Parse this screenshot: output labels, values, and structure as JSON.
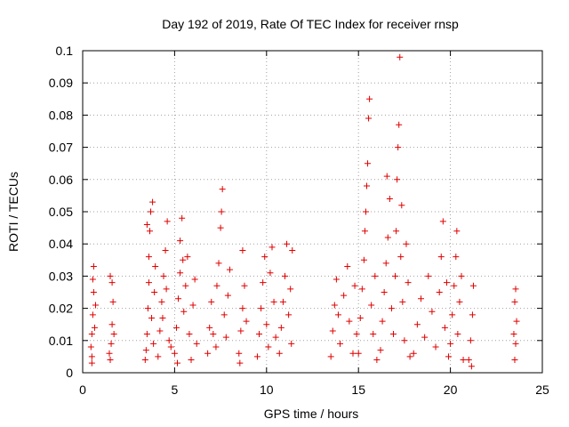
{
  "chart_data": {
    "type": "scatter",
    "title": "Day 192 of 2019, Rate Of TEC Index for receiver rnsp",
    "xlabel": "GPS time / hours",
    "ylabel": "ROTI / TECUs",
    "xlim": [
      0,
      25
    ],
    "ylim": [
      0,
      0.1
    ],
    "x_ticks": [
      0,
      5,
      10,
      15,
      20,
      25
    ],
    "x_tick_labels": [
      "0",
      "5",
      "10",
      "15",
      "20",
      "25"
    ],
    "y_ticks": [
      0,
      0.01,
      0.02,
      0.03,
      0.04,
      0.05,
      0.06,
      0.07,
      0.08,
      0.09,
      0.1
    ],
    "y_tick_labels": [
      "0",
      "0.01",
      "0.02",
      "0.03",
      "0.04",
      "0.05",
      "0.06",
      "0.07",
      "0.08",
      "0.09",
      "0.1"
    ],
    "grid": true,
    "marker": "+",
    "color": "#e00000",
    "series": [
      {
        "points": [
          [
            0.5,
            0.005
          ],
          [
            0.5,
            0.012
          ],
          [
            0.55,
            0.018
          ],
          [
            0.6,
            0.025
          ],
          [
            0.6,
            0.033
          ],
          [
            0.45,
            0.008
          ],
          [
            0.65,
            0.014
          ],
          [
            0.7,
            0.021
          ],
          [
            0.55,
            0.029
          ],
          [
            0.5,
            0.003
          ],
          [
            1.5,
            0.004
          ],
          [
            1.55,
            0.009
          ],
          [
            1.6,
            0.015
          ],
          [
            1.65,
            0.022
          ],
          [
            1.6,
            0.028
          ],
          [
            1.5,
            0.03
          ],
          [
            1.7,
            0.012
          ],
          [
            1.45,
            0.006
          ],
          [
            3.4,
            0.004
          ],
          [
            3.5,
            0.012
          ],
          [
            3.55,
            0.02
          ],
          [
            3.6,
            0.028
          ],
          [
            3.6,
            0.036
          ],
          [
            3.65,
            0.044
          ],
          [
            3.7,
            0.05
          ],
          [
            3.8,
            0.053
          ],
          [
            3.75,
            0.017
          ],
          [
            3.85,
            0.009
          ],
          [
            3.9,
            0.025
          ],
          [
            3.95,
            0.033
          ],
          [
            3.5,
            0.046
          ],
          [
            3.45,
            0.007
          ],
          [
            4.1,
            0.005
          ],
          [
            4.2,
            0.013
          ],
          [
            4.3,
            0.022
          ],
          [
            4.4,
            0.03
          ],
          [
            4.5,
            0.038
          ],
          [
            4.6,
            0.047
          ],
          [
            4.7,
            0.01
          ],
          [
            4.35,
            0.017
          ],
          [
            4.55,
            0.026
          ],
          [
            4.8,
            0.008
          ],
          [
            5.0,
            0.006
          ],
          [
            5.1,
            0.014
          ],
          [
            5.2,
            0.023
          ],
          [
            5.3,
            0.031
          ],
          [
            5.3,
            0.041
          ],
          [
            5.4,
            0.048
          ],
          [
            5.5,
            0.019
          ],
          [
            5.6,
            0.027
          ],
          [
            5.7,
            0.036
          ],
          [
            5.8,
            0.012
          ],
          [
            5.9,
            0.004
          ],
          [
            6.0,
            0.021
          ],
          [
            6.1,
            0.029
          ],
          [
            6.2,
            0.009
          ],
          [
            5.15,
            0.003
          ],
          [
            5.45,
            0.035
          ],
          [
            6.8,
            0.006
          ],
          [
            6.9,
            0.014
          ],
          [
            7.0,
            0.022
          ],
          [
            7.1,
            0.012
          ],
          [
            7.3,
            0.027
          ],
          [
            7.4,
            0.034
          ],
          [
            7.5,
            0.045
          ],
          [
            7.6,
            0.057
          ],
          [
            7.55,
            0.05
          ],
          [
            7.7,
            0.018
          ],
          [
            7.8,
            0.011
          ],
          [
            7.9,
            0.024
          ],
          [
            8.0,
            0.032
          ],
          [
            7.25,
            0.008
          ],
          [
            8.5,
            0.006
          ],
          [
            8.6,
            0.013
          ],
          [
            8.7,
            0.02
          ],
          [
            8.8,
            0.027
          ],
          [
            8.7,
            0.038
          ],
          [
            8.9,
            0.016
          ],
          [
            8.55,
            0.003
          ],
          [
            9.5,
            0.005
          ],
          [
            9.6,
            0.012
          ],
          [
            9.7,
            0.02
          ],
          [
            9.8,
            0.028
          ],
          [
            9.9,
            0.036
          ],
          [
            10.0,
            0.015
          ],
          [
            10.1,
            0.008
          ],
          [
            10.2,
            0.031
          ],
          [
            10.3,
            0.039
          ],
          [
            10.4,
            0.022
          ],
          [
            10.5,
            0.011
          ],
          [
            10.7,
            0.006
          ],
          [
            10.8,
            0.014
          ],
          [
            10.9,
            0.022
          ],
          [
            11.0,
            0.03
          ],
          [
            11.1,
            0.04
          ],
          [
            11.2,
            0.018
          ],
          [
            11.3,
            0.026
          ],
          [
            11.4,
            0.038
          ],
          [
            11.35,
            0.009
          ],
          [
            13.5,
            0.005
          ],
          [
            13.6,
            0.013
          ],
          [
            13.7,
            0.021
          ],
          [
            13.8,
            0.029
          ],
          [
            13.9,
            0.018
          ],
          [
            14.0,
            0.009
          ],
          [
            14.2,
            0.024
          ],
          [
            14.4,
            0.033
          ],
          [
            14.5,
            0.016
          ],
          [
            14.7,
            0.006
          ],
          [
            14.8,
            0.027
          ],
          [
            14.9,
            0.012
          ],
          [
            15.0,
            0.006
          ],
          [
            15.1,
            0.017
          ],
          [
            15.2,
            0.026
          ],
          [
            15.3,
            0.035
          ],
          [
            15.4,
            0.05
          ],
          [
            15.45,
            0.058
          ],
          [
            15.5,
            0.065
          ],
          [
            15.55,
            0.079
          ],
          [
            15.6,
            0.085
          ],
          [
            15.7,
            0.021
          ],
          [
            15.8,
            0.012
          ],
          [
            15.9,
            0.03
          ],
          [
            16.0,
            0.004
          ],
          [
            15.35,
            0.044
          ],
          [
            16.2,
            0.007
          ],
          [
            16.3,
            0.016
          ],
          [
            16.4,
            0.025
          ],
          [
            16.5,
            0.034
          ],
          [
            16.6,
            0.042
          ],
          [
            16.7,
            0.054
          ],
          [
            16.8,
            0.02
          ],
          [
            16.9,
            0.012
          ],
          [
            17.0,
            0.03
          ],
          [
            17.05,
            0.044
          ],
          [
            17.1,
            0.06
          ],
          [
            17.15,
            0.07
          ],
          [
            17.2,
            0.077
          ],
          [
            17.25,
            0.098
          ],
          [
            17.3,
            0.036
          ],
          [
            17.4,
            0.022
          ],
          [
            17.5,
            0.01
          ],
          [
            17.6,
            0.04
          ],
          [
            17.7,
            0.028
          ],
          [
            17.8,
            0.005
          ],
          [
            16.55,
            0.061
          ],
          [
            17.35,
            0.052
          ],
          [
            18.0,
            0.006
          ],
          [
            18.2,
            0.015
          ],
          [
            18.4,
            0.023
          ],
          [
            18.6,
            0.011
          ],
          [
            18.8,
            0.03
          ],
          [
            19.0,
            0.019
          ],
          [
            19.2,
            0.008
          ],
          [
            19.4,
            0.025
          ],
          [
            19.5,
            0.036
          ],
          [
            19.6,
            0.047
          ],
          [
            19.7,
            0.014
          ],
          [
            19.8,
            0.028
          ],
          [
            19.9,
            0.005
          ],
          [
            20.0,
            0.009
          ],
          [
            20.1,
            0.018
          ],
          [
            20.2,
            0.027
          ],
          [
            20.3,
            0.036
          ],
          [
            20.35,
            0.044
          ],
          [
            20.4,
            0.012
          ],
          [
            20.5,
            0.022
          ],
          [
            20.6,
            0.03
          ],
          [
            20.7,
            0.004
          ],
          [
            21.0,
            0.004
          ],
          [
            21.1,
            0.01
          ],
          [
            21.2,
            0.018
          ],
          [
            21.25,
            0.027
          ],
          [
            21.15,
            0.002
          ],
          [
            23.5,
            0.004
          ],
          [
            23.55,
            0.009
          ],
          [
            23.6,
            0.016
          ],
          [
            23.5,
            0.022
          ],
          [
            23.55,
            0.026
          ],
          [
            23.45,
            0.012
          ]
        ]
      }
    ]
  }
}
